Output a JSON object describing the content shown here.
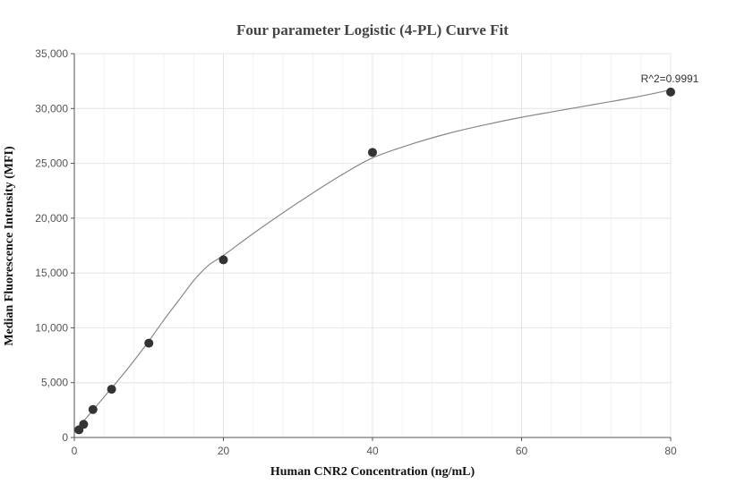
{
  "chart_data": {
    "type": "scatter",
    "title": "Four parameter Logistic (4-PL) Curve Fit",
    "xlabel": "Human CNR2 Concentration (ng/mL)",
    "ylabel": "Median Fluorescence Intensity (MFI)",
    "xlim": [
      0,
      80
    ],
    "ylim": [
      0,
      35000
    ],
    "x_ticks": [
      0,
      20,
      40,
      60,
      80
    ],
    "x_tick_labels": [
      "0",
      "20",
      "40",
      "60",
      "80"
    ],
    "y_ticks": [
      0,
      5000,
      10000,
      15000,
      20000,
      25000,
      30000,
      35000
    ],
    "y_tick_labels": [
      "0",
      "5,000",
      "10,000",
      "15,000",
      "20,000",
      "25,000",
      "30,000",
      "35,000"
    ],
    "grid": true,
    "series": [
      {
        "kind": "points",
        "x": [
          0.625,
          1.25,
          2.5,
          5,
          10,
          20,
          40,
          80
        ],
        "y": [
          700,
          1200,
          2550,
          4400,
          8600,
          16200,
          26000,
          31500
        ],
        "color": "#333333"
      },
      {
        "kind": "fit-curve",
        "x": [
          0,
          1,
          2,
          3,
          4,
          5,
          6,
          8,
          10,
          12,
          14,
          16,
          18,
          20,
          24,
          28,
          32,
          36,
          40,
          45,
          50,
          55,
          60,
          65,
          70,
          75,
          80
        ],
        "y": [
          400,
          1300,
          2100,
          2900,
          3700,
          4500,
          5300,
          7000,
          8800,
          10700,
          12500,
          14300,
          15700,
          16600,
          18600,
          20500,
          22300,
          24000,
          25500,
          26700,
          27700,
          28500,
          29200,
          29800,
          30400,
          31000,
          31700
        ],
        "color": "#888888"
      }
    ],
    "annotation": {
      "text": "R^2=0.9991",
      "x": 80,
      "y": 31500
    }
  }
}
